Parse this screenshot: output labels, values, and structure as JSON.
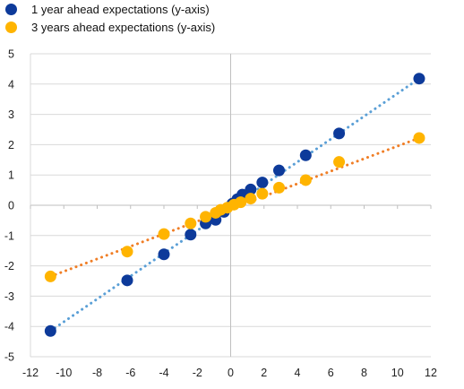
{
  "chart_data": {
    "type": "scatter",
    "title": "",
    "xlabel": "",
    "ylabel": "",
    "xlim": [
      -12,
      12
    ],
    "ylim": [
      -5,
      5
    ],
    "x_ticks": [
      "-12",
      "-10",
      "-8",
      "-6",
      "-4",
      "-2",
      "0",
      "2",
      "4",
      "6",
      "8",
      "10",
      "12"
    ],
    "y_ticks": [
      "5",
      "4",
      "3",
      "2",
      "1",
      "0",
      "-1",
      "-2",
      "-3",
      "-4",
      "-5"
    ],
    "grid": "horizontal",
    "legend_position": "top-left",
    "series": [
      {
        "name": "1 year ahead expectations (y-axis)",
        "color": "#0d3a9a",
        "trend_color": "#5a9fd6",
        "points": [
          {
            "x": -10.8,
            "y": -4.15
          },
          {
            "x": -6.2,
            "y": -2.48
          },
          {
            "x": -4.0,
            "y": -1.62
          },
          {
            "x": -2.4,
            "y": -0.97
          },
          {
            "x": -1.5,
            "y": -0.6
          },
          {
            "x": -0.9,
            "y": -0.48
          },
          {
            "x": -0.4,
            "y": -0.22
          },
          {
            "x": 0.1,
            "y": 0.05
          },
          {
            "x": 0.4,
            "y": 0.2
          },
          {
            "x": 0.7,
            "y": 0.35
          },
          {
            "x": 1.2,
            "y": 0.52
          },
          {
            "x": 1.9,
            "y": 0.75
          },
          {
            "x": 2.9,
            "y": 1.15
          },
          {
            "x": 4.5,
            "y": 1.65
          },
          {
            "x": 6.5,
            "y": 2.37
          },
          {
            "x": 11.3,
            "y": 4.18
          }
        ],
        "trendline": {
          "x": [
            -10.8,
            11.3
          ],
          "y": [
            -4.15,
            4.18
          ]
        }
      },
      {
        "name": "3 years ahead expectations (y-axis)",
        "color": "#ffb400",
        "trend_color": "#f07e26",
        "points": [
          {
            "x": -10.8,
            "y": -2.35
          },
          {
            "x": -6.2,
            "y": -1.53
          },
          {
            "x": -4.0,
            "y": -0.95
          },
          {
            "x": -2.4,
            "y": -0.6
          },
          {
            "x": -1.5,
            "y": -0.38
          },
          {
            "x": -0.9,
            "y": -0.25
          },
          {
            "x": -0.6,
            "y": -0.15
          },
          {
            "x": -0.2,
            "y": -0.08
          },
          {
            "x": 0.2,
            "y": 0.02
          },
          {
            "x": 0.6,
            "y": 0.1
          },
          {
            "x": 1.2,
            "y": 0.22
          },
          {
            "x": 1.9,
            "y": 0.38
          },
          {
            "x": 2.9,
            "y": 0.58
          },
          {
            "x": 4.5,
            "y": 0.83
          },
          {
            "x": 6.5,
            "y": 1.43
          },
          {
            "x": 11.3,
            "y": 2.22
          }
        ],
        "trendline": {
          "x": [
            -10.8,
            11.3
          ],
          "y": [
            -2.35,
            2.22
          ]
        }
      }
    ]
  }
}
